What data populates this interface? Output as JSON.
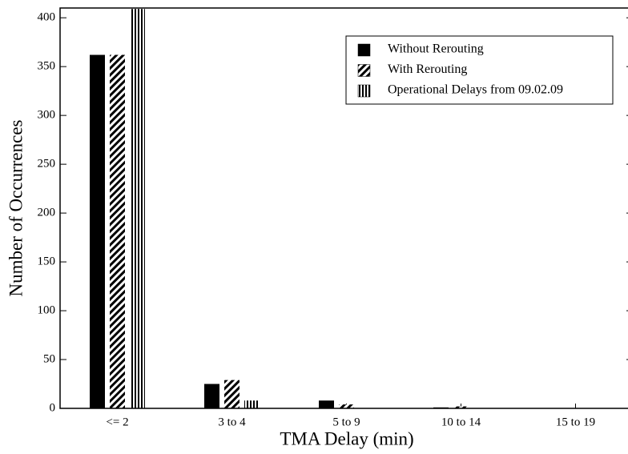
{
  "chart_data": {
    "type": "bar",
    "x_label": "TMA Delay (min)",
    "y_label": "Number of Occurrences",
    "categories": [
      "<= 2",
      "3 to 4",
      "5 to 9",
      "10 to 14",
      "15 to 19"
    ],
    "series": [
      {
        "name": "Without Rerouting",
        "color": "#000000",
        "pattern": "solid",
        "values": [
          362,
          25,
          8,
          1,
          0
        ]
      },
      {
        "name": "With Rerouting",
        "color": "#000000",
        "pattern": "diagonal",
        "values": [
          362,
          29,
          4,
          2,
          0
        ]
      },
      {
        "name": "Operational Delays from 09.02.09",
        "color": "#000000",
        "pattern": "vertical",
        "values": [
          409,
          8,
          0,
          0,
          0
        ]
      }
    ],
    "ylim": [
      0,
      410
    ],
    "yticks": [
      0,
      50,
      100,
      150,
      200,
      250,
      300,
      350,
      400
    ],
    "grid": false,
    "legend": "upper right"
  }
}
